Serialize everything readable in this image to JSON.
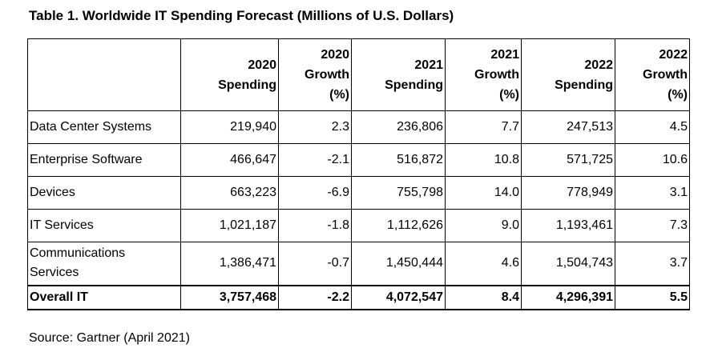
{
  "title": "Table 1. Worldwide IT Spending Forecast (Millions of U.S. Dollars)",
  "table": {
    "headers": [
      "",
      "2020 Spending",
      "2020 Growth (%)",
      "2021 Spending",
      "2021 Growth (%)",
      "2022 Spending",
      "2022 Growth (%)"
    ],
    "header_lines": [
      [
        ""
      ],
      [
        "2020",
        "Spending"
      ],
      [
        "2020",
        "Growth",
        "(%)"
      ],
      [
        "2021",
        "Spending"
      ],
      [
        "2021",
        "Growth",
        "(%)"
      ],
      [
        "2022",
        "Spending"
      ],
      [
        "2022",
        "Growth",
        "(%)"
      ]
    ],
    "rows": [
      {
        "label": [
          "Data Center Systems"
        ],
        "values": [
          "219,940",
          "2.3",
          "236,806",
          "7.7",
          "247,513",
          "4.5"
        ]
      },
      {
        "label": [
          "Enterprise Software"
        ],
        "values": [
          "466,647",
          "-2.1",
          "516,872",
          "10.8",
          "571,725",
          "10.6"
        ]
      },
      {
        "label": [
          "Devices"
        ],
        "values": [
          "663,223",
          "-6.9",
          "755,798",
          "14.0",
          "778,949",
          "3.1"
        ]
      },
      {
        "label": [
          "IT Services"
        ],
        "values": [
          "1,021,187",
          "-1.8",
          "1,112,626",
          "9.0",
          "1,193,461",
          "7.3"
        ]
      },
      {
        "label": [
          "Communications",
          "Services"
        ],
        "values": [
          "1,386,471",
          "-0.7",
          "1,450,444",
          "4.6",
          "1,504,743",
          "3.7"
        ]
      }
    ],
    "total": {
      "label": "Overall IT",
      "values": [
        "3,757,468",
        "-2.2",
        "4,072,547",
        "8.4",
        "4,296,391",
        "5.5"
      ]
    }
  },
  "source": "Source: Gartner (April 2021)"
}
